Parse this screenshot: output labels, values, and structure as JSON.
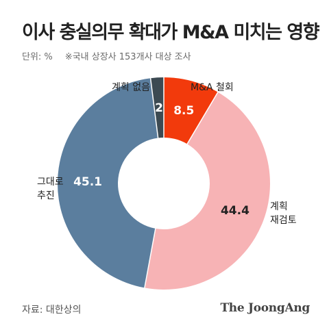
{
  "chart_data": {
    "type": "pie",
    "title": "이사 충실의무 확대가 M&A 미치는 영향",
    "unit_label": "단위: %",
    "note": "※국내 상장사 153개사 대상 조사",
    "slices": [
      {
        "label": "M&A 철회",
        "label_lines": [
          "M&A 철회"
        ],
        "value": 8.5,
        "value_label": "8.5",
        "color": "#f23a0c",
        "text_color": "#ffffff"
      },
      {
        "label": "계획 재검토",
        "label_lines": [
          "계획",
          "재검토"
        ],
        "value": 44.4,
        "value_label": "44.4",
        "color": "#f7b3b5",
        "text_color": "#222222"
      },
      {
        "label": "그대로 추진",
        "label_lines": [
          "그대로",
          "추진"
        ],
        "value": 45.1,
        "value_label": "45.1",
        "color": "#5b7e9e",
        "text_color": "#ffffff"
      },
      {
        "label": "계획 없음",
        "label_lines": [
          "계획 없음"
        ],
        "value": 2,
        "value_label": "2",
        "color": "#3c4a52",
        "text_color": "#ffffff"
      }
    ],
    "start_angle_deg": 0,
    "direction": "clockwise",
    "donut": true
  },
  "footer": {
    "source": "자료: 대한상의",
    "brand": "The JoongAng"
  }
}
